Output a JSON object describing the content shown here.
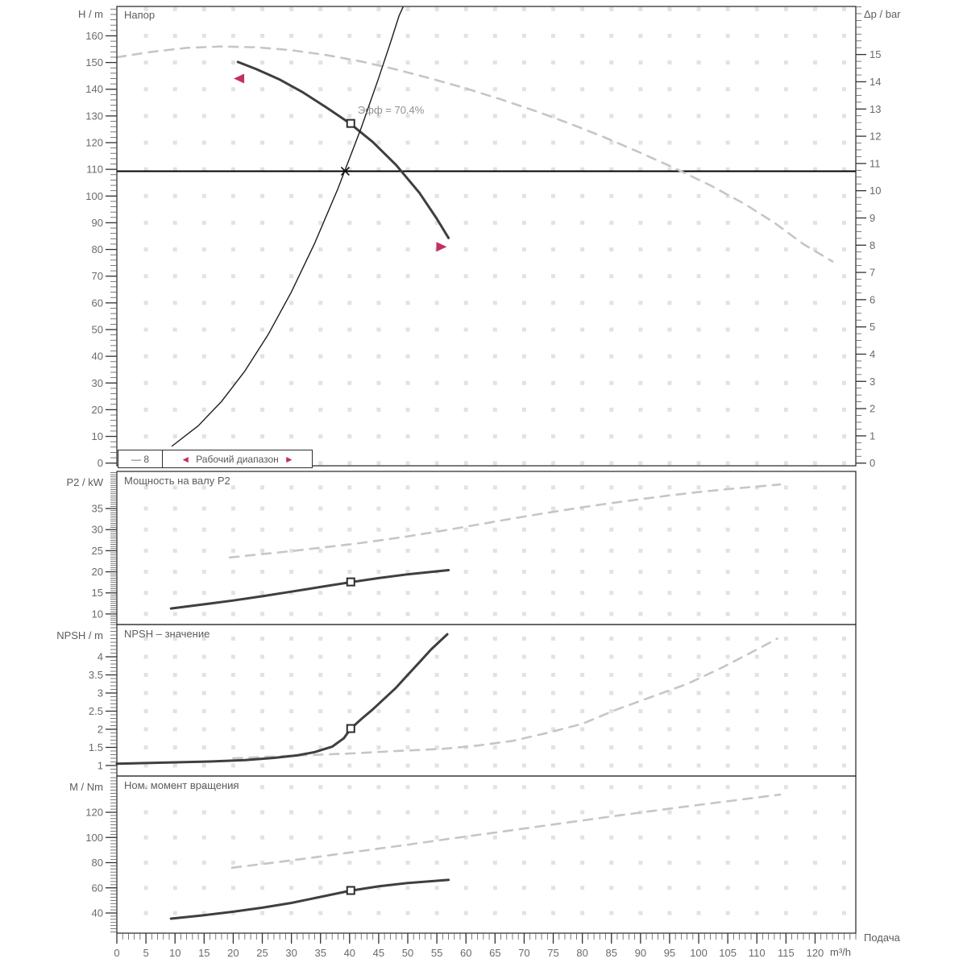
{
  "legend": {
    "curve_id": "— 8",
    "arrow_left": "◄",
    "arrow_right": "►",
    "range_label": "Рабочий диапазон"
  },
  "colors": {
    "solid_curve": "#3f3f3f",
    "dashed_curve": "#c6c6c6",
    "system_curve": "#1c1c1c",
    "duty_line": "#000000",
    "range_arrow": "#c13060",
    "grid_dot": "#e2e2e2",
    "tick_label": "#6a6a6a",
    "title": "#4f4f4f",
    "annotation": "#909090"
  },
  "xaxis": {
    "label": "Подача",
    "unit": "m³/h",
    "xlim": [
      0,
      127
    ],
    "minor": 1,
    "ticks": [
      0,
      5,
      10,
      15,
      20,
      25,
      30,
      35,
      40,
      45,
      50,
      55,
      60,
      65,
      70,
      75,
      80,
      85,
      90,
      95,
      100,
      105,
      110,
      115,
      120
    ]
  },
  "chart_data": [
    {
      "type": "line",
      "title": "Напор",
      "ylabel": "H / m",
      "y2label": "Δp / bar",
      "ylim": [
        -1,
        171
      ],
      "yticks": [
        0,
        10,
        20,
        30,
        40,
        50,
        60,
        70,
        80,
        90,
        100,
        110,
        120,
        130,
        140,
        150,
        160
      ],
      "yminor": 2,
      "y2": {
        "ticks": [
          0,
          1,
          2,
          3,
          4,
          5,
          6,
          7,
          8,
          9,
          10,
          11,
          12,
          13,
          14,
          15
        ],
        "minor": 0.25,
        "per_unit": 10.2
      },
      "hline": 109.3,
      "annotation": {
        "text": "Эфф = 70.4%",
        "q": 41.4,
        "v": 130.8
      },
      "series": [
        {
          "name": "max-diameter-curve",
          "style": "dashed",
          "points": [
            [
              0,
              152
            ],
            [
              6,
              154
            ],
            [
              12,
              155.5
            ],
            [
              18,
              156
            ],
            [
              24,
              155.7
            ],
            [
              30,
              154.6
            ],
            [
              36,
              152.8
            ],
            [
              42,
              150.4
            ],
            [
              48,
              147.4
            ],
            [
              54,
              144
            ],
            [
              60,
              140.3
            ],
            [
              66,
              136.2
            ],
            [
              72,
              131.8
            ],
            [
              78,
              127
            ],
            [
              84,
              121.8
            ],
            [
              90,
              116.2
            ],
            [
              96,
              110.3
            ],
            [
              102,
              104
            ],
            [
              108,
              96.9
            ],
            [
              113,
              90
            ],
            [
              118,
              82
            ],
            [
              123,
              75.5
            ]
          ]
        },
        {
          "name": "pump-curve",
          "style": "solid",
          "points": [
            [
              20.8,
              150.2
            ],
            [
              24,
              147.5
            ],
            [
              28,
              143.6
            ],
            [
              32,
              138.8
            ],
            [
              36,
              133.2
            ],
            [
              40,
              127.3
            ],
            [
              44,
              120.2
            ],
            [
              48,
              111.6
            ],
            [
              52,
              101.2
            ],
            [
              55,
              91.5
            ],
            [
              57,
              84.3
            ]
          ]
        },
        {
          "name": "system-curve",
          "style": "thin",
          "points": [
            [
              9.5,
              6.4
            ],
            [
              14,
              14
            ],
            [
              18,
              23.1
            ],
            [
              22,
              34.5
            ],
            [
              26,
              48.1
            ],
            [
              30,
              64.1
            ],
            [
              34,
              82.3
            ],
            [
              38,
              102.8
            ],
            [
              42,
              125.6
            ],
            [
              45,
              144.2
            ],
            [
              47,
              157.3
            ],
            [
              48.5,
              167.5
            ],
            [
              49.2,
              170.8
            ]
          ]
        }
      ],
      "markers": [
        {
          "type": "square",
          "q": 40.2,
          "v": 127.2
        },
        {
          "type": "cross",
          "q": 39.25,
          "v": 109.3
        },
        {
          "type": "arrow-left",
          "q": 21.2,
          "v": 144
        },
        {
          "type": "arrow-right",
          "q": 55.6,
          "v": 81
        }
      ]
    },
    {
      "type": "line",
      "title": "Мощность на валу P2",
      "ylabel": "P2 / kW",
      "ylim": [
        7.5,
        43.8
      ],
      "yticks": [
        10,
        15,
        20,
        25,
        30,
        35
      ],
      "yminor": 0.5,
      "series": [
        {
          "name": "max-diameter-power-curve",
          "style": "dashed",
          "points": [
            [
              19.4,
              23.4
            ],
            [
              25,
              24.2
            ],
            [
              30,
              24.9
            ],
            [
              35,
              25.7
            ],
            [
              40,
              26.5
            ],
            [
              45,
              27.4
            ],
            [
              50,
              28.4
            ],
            [
              55,
              29.5
            ],
            [
              60,
              30.7
            ],
            [
              65,
              31.9
            ],
            [
              70,
              33.1
            ],
            [
              75,
              34.2
            ],
            [
              80,
              35.3
            ],
            [
              85,
              36.3
            ],
            [
              90,
              37.2
            ],
            [
              95,
              38.1
            ],
            [
              100,
              38.9
            ],
            [
              105,
              39.6
            ],
            [
              110,
              40.2
            ],
            [
              114,
              40.7
            ]
          ]
        },
        {
          "name": "power-curve",
          "style": "solid",
          "points": [
            [
              9.3,
              11.3
            ],
            [
              15,
              12.3
            ],
            [
              20,
              13.2
            ],
            [
              25,
              14.2
            ],
            [
              30,
              15.3
            ],
            [
              35,
              16.4
            ],
            [
              40,
              17.5
            ],
            [
              45,
              18.5
            ],
            [
              50,
              19.4
            ],
            [
              55,
              20.1
            ],
            [
              57,
              20.4
            ]
          ]
        }
      ],
      "markers": [
        {
          "type": "square",
          "q": 40.2,
          "v": 17.6
        }
      ]
    },
    {
      "type": "line",
      "title": "NPSH – значение",
      "ylabel": "NPSH / m",
      "ylim": [
        0.71,
        4.89
      ],
      "yticks": [
        1,
        1.5,
        2,
        2.5,
        3,
        3.5,
        4
      ],
      "yminor": 0.1,
      "series": [
        {
          "name": "max-diameter-npsh-curve",
          "style": "dashed",
          "points": [
            [
              20,
              1.2
            ],
            [
              30,
              1.27
            ],
            [
              40,
              1.33
            ],
            [
              48,
              1.4
            ],
            [
              56,
              1.46
            ],
            [
              62,
              1.55
            ],
            [
              68,
              1.68
            ],
            [
              74,
              1.9
            ],
            [
              80,
              2.15
            ],
            [
              86,
              2.55
            ],
            [
              92,
              2.9
            ],
            [
              98,
              3.25
            ],
            [
              104,
              3.7
            ],
            [
              110,
              4.2
            ],
            [
              113.5,
              4.5
            ]
          ]
        },
        {
          "name": "npsh-curve",
          "style": "solid",
          "points": [
            [
              0,
              1.05
            ],
            [
              8,
              1.08
            ],
            [
              16,
              1.11
            ],
            [
              22,
              1.15
            ],
            [
              27,
              1.21
            ],
            [
              31,
              1.28
            ],
            [
              34,
              1.37
            ],
            [
              37,
              1.52
            ],
            [
              39,
              1.75
            ],
            [
              40.2,
              2.02
            ],
            [
              42,
              2.28
            ],
            [
              44,
              2.55
            ],
            [
              46,
              2.85
            ],
            [
              48,
              3.15
            ],
            [
              50,
              3.5
            ],
            [
              52,
              3.85
            ],
            [
              54,
              4.2
            ],
            [
              56,
              4.5
            ],
            [
              56.8,
              4.62
            ]
          ]
        }
      ],
      "markers": [
        {
          "type": "square",
          "q": 40.2,
          "v": 2.02
        }
      ]
    },
    {
      "type": "line",
      "title": "Ном. момент вращения",
      "ylabel": "M / Nm",
      "ylim": [
        24,
        148.8
      ],
      "yticks": [
        40,
        60,
        80,
        100,
        120
      ],
      "yminor": 2.5,
      "series": [
        {
          "name": "max-diameter-torque-curve",
          "style": "dashed",
          "points": [
            [
              19.8,
              76
            ],
            [
              26,
              79.5
            ],
            [
              32,
              83
            ],
            [
              38,
              86.8
            ],
            [
              44,
              90.5
            ],
            [
              50,
              94.3
            ],
            [
              56,
              98.2
            ],
            [
              62,
              102
            ],
            [
              68,
              105.8
            ],
            [
              74,
              109.7
            ],
            [
              80,
              113.5
            ],
            [
              86,
              117.3
            ],
            [
              92,
              121
            ],
            [
              98,
              124.7
            ],
            [
              104,
              128.2
            ],
            [
              110,
              131.7
            ],
            [
              114,
              134
            ]
          ]
        },
        {
          "name": "torque-curve",
          "style": "solid",
          "points": [
            [
              9.3,
              35.5
            ],
            [
              15,
              38.3
            ],
            [
              20,
              41
            ],
            [
              25,
              44.2
            ],
            [
              30,
              48
            ],
            [
              35,
              52.8
            ],
            [
              40,
              57.6
            ],
            [
              45,
              61.2
            ],
            [
              50,
              63.8
            ],
            [
              55,
              65.6
            ],
            [
              57,
              66.3
            ]
          ]
        }
      ],
      "markers": [
        {
          "type": "square",
          "q": 40.2,
          "v": 57.9
        }
      ]
    }
  ]
}
